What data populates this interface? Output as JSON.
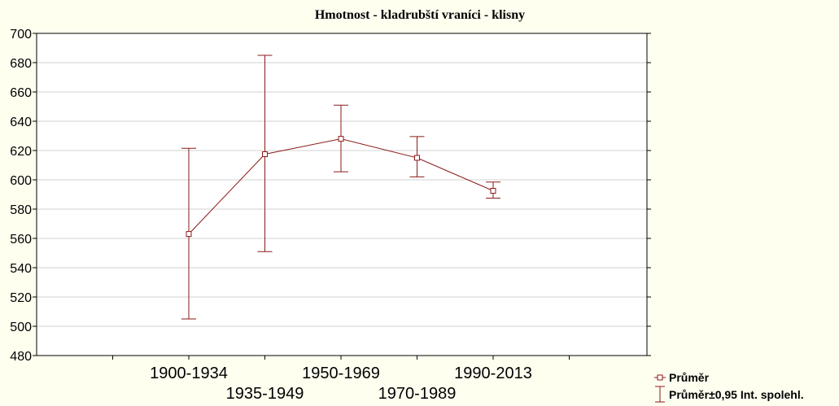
{
  "chart_data": {
    "type": "line",
    "title": "Hmotnost - kladrubští vraníci - klisny",
    "xlabel": "",
    "ylabel": "",
    "categories": [
      "1900-1934",
      "1935-1949",
      "1950-1969",
      "1970-1989",
      "1990-2013"
    ],
    "series": [
      {
        "name": "Průměr",
        "values": [
          563,
          617.5,
          628,
          615,
          592.5
        ],
        "ci_low": [
          505,
          551,
          605.5,
          602,
          587.5
        ],
        "ci_high": [
          621.5,
          685,
          651,
          629.5,
          598.5
        ]
      }
    ],
    "ylim": [
      480,
      700
    ],
    "yticks": [
      480,
      500,
      520,
      540,
      560,
      580,
      600,
      620,
      640,
      660,
      680,
      700
    ],
    "grid": true,
    "legend_position": "bottom-right",
    "legend": [
      "Průměr",
      "Průměr±0,95 Int. spolehl."
    ],
    "colors": {
      "series": "#8b1a1a",
      "background": "#fffff0",
      "plot": "#ffffff",
      "grid": "#d0d0d0"
    }
  }
}
